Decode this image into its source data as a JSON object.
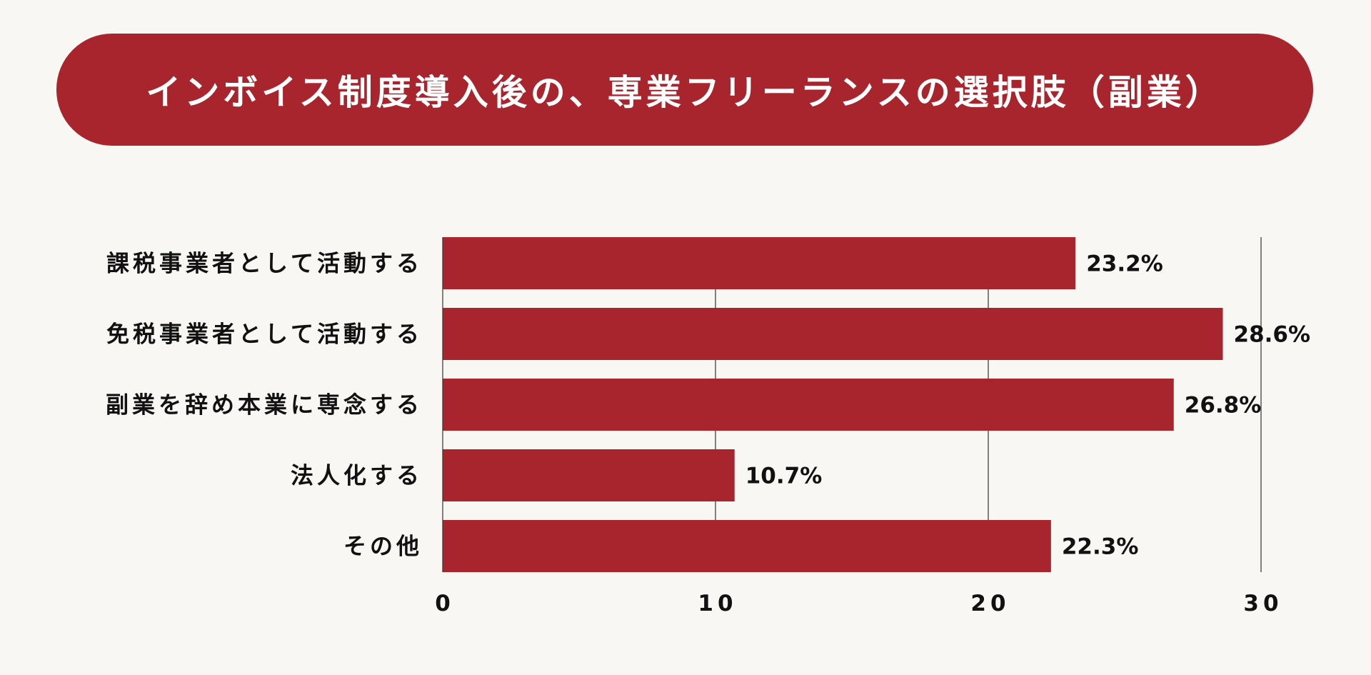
{
  "chart_data": {
    "type": "bar",
    "orientation": "horizontal",
    "title": "インボイス制度導入後の、専業フリーランスの選択肢（副業）",
    "categories": [
      "課税事業者として活動する",
      "免税事業者として活動する",
      "副業を辞め本業に専念する",
      "法人化する",
      "その他"
    ],
    "values": [
      23.2,
      28.6,
      26.8,
      10.7,
      22.3
    ],
    "value_labels": [
      "23.2%",
      "28.6%",
      "26.8%",
      "10.7%",
      "22.3%"
    ],
    "xlim": [
      0,
      30
    ],
    "xticks": [
      0,
      10,
      20,
      30
    ],
    "xtick_labels": [
      "0",
      "10",
      "20",
      "30"
    ],
    "xlabel": "",
    "ylabel": "",
    "grid": true,
    "legend": "none",
    "colors": {
      "bar": "#a8252e",
      "banner": "#a8252e",
      "gridline": "#333333",
      "text": "#111111",
      "background": "#f8f7f4"
    }
  }
}
